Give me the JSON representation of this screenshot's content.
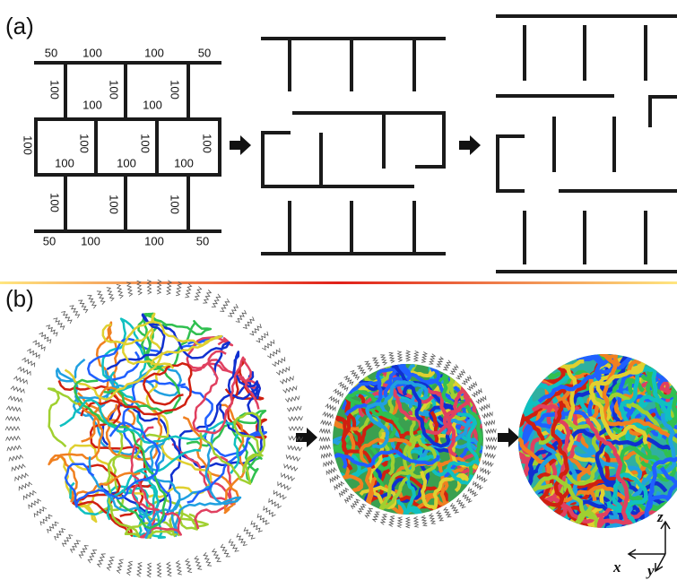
{
  "panel_a": {
    "label": "(a)",
    "grid_labels": [
      "50",
      "100",
      "100",
      "50",
      "100",
      "100",
      "100",
      "100",
      "100",
      "100",
      "100",
      "100",
      "100",
      "100",
      "100",
      "100",
      "100",
      "100",
      "100",
      "50",
      "100",
      "100",
      "50"
    ]
  },
  "panel_b": {
    "label": "(b)",
    "axes": [
      "z",
      "x",
      "y"
    ]
  }
}
